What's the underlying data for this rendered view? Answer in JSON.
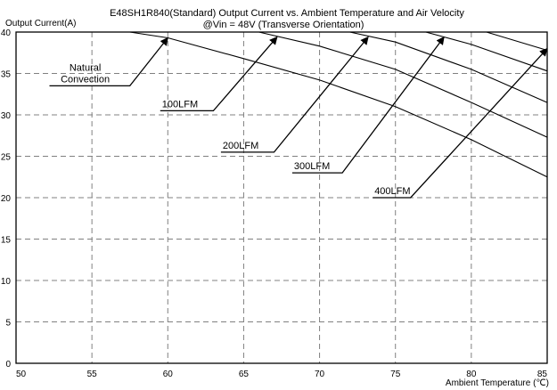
{
  "chart_data": {
    "type": "line",
    "title": "E48SH1R840(Standard)  Output Current vs. Ambient Temperature and Air Velocity",
    "subtitle": "@Vin = 48V (Transverse Orientation)",
    "xlabel": "Ambient Temperature (℃)",
    "ylabel": "Output Current(A)",
    "xlim": [
      50,
      85
    ],
    "ylim": [
      0,
      40
    ],
    "xticks": [
      "50",
      "55",
      "60",
      "65",
      "70",
      "75",
      "80",
      "85"
    ],
    "yticks": [
      "0",
      "5",
      "10",
      "15",
      "20",
      "25",
      "30",
      "35",
      "40"
    ],
    "grid": true,
    "series": [
      {
        "name": "Natural Convection",
        "x": [
          50,
          57.5,
          60,
          65,
          70,
          75,
          80,
          85
        ],
        "y": [
          40,
          40,
          39.3,
          36.8,
          34.2,
          31.0,
          27.0,
          22.5
        ]
      },
      {
        "name": "100LFM",
        "x": [
          50,
          66,
          70,
          75,
          80,
          85
        ],
        "y": [
          40,
          40,
          38.3,
          35.5,
          31.5,
          27.3
        ]
      },
      {
        "name": "200LFM",
        "x": [
          50,
          72,
          75,
          80,
          85
        ],
        "y": [
          40,
          40,
          38.8,
          35.5,
          31.5
        ]
      },
      {
        "name": "300LFM",
        "x": [
          50,
          77,
          80,
          85
        ],
        "y": [
          40,
          40,
          38.5,
          35.3
        ]
      },
      {
        "name": "400LFM",
        "x": [
          50,
          81,
          85
        ],
        "y": [
          40,
          40,
          37.8
        ]
      }
    ],
    "annotations": [
      {
        "lines": [
          "Natural",
          "Convection"
        ],
        "anchor": [
          57.5,
          33.5
        ],
        "target": [
          60,
          39.3
        ],
        "shelf_from": 52.2
      },
      {
        "lines": [
          "100LFM"
        ],
        "anchor": [
          63.0,
          30.5
        ],
        "target": [
          67.2,
          39.4
        ],
        "shelf_from": 59.5
      },
      {
        "lines": [
          "200LFM"
        ],
        "anchor": [
          67.0,
          25.5
        ],
        "target": [
          73.2,
          39.4
        ],
        "shelf_from": 63.5
      },
      {
        "lines": [
          "300LFM"
        ],
        "anchor": [
          71.5,
          23.0
        ],
        "target": [
          78.2,
          39.4
        ],
        "shelf_from": 68.2
      },
      {
        "lines": [
          "400LFM"
        ],
        "anchor": [
          76.0,
          20.0
        ],
        "target": [
          85.0,
          38.0
        ],
        "shelf_from": 73.5
      }
    ]
  }
}
